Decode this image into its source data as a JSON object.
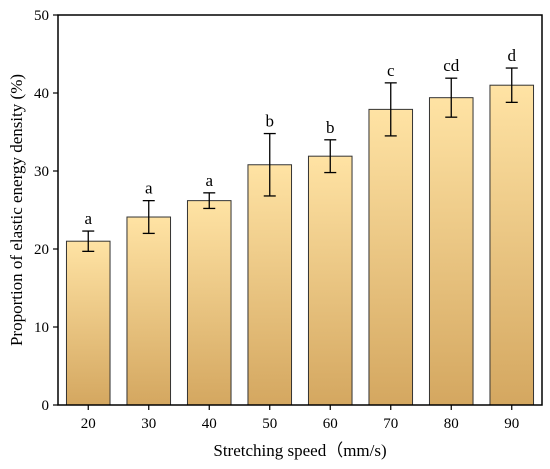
{
  "chart_data": {
    "type": "bar",
    "xlabel": "Stretching speed（mm/s)",
    "ylabel": "Proportion of elastic energy density (%)",
    "ylim": [
      0,
      50
    ],
    "yticks": [
      0,
      10,
      20,
      30,
      40,
      50
    ],
    "categories": [
      "20",
      "30",
      "40",
      "50",
      "60",
      "70",
      "80",
      "90"
    ],
    "values": [
      21.0,
      24.1,
      26.2,
      30.8,
      31.9,
      37.9,
      39.4,
      41.0
    ],
    "errors": [
      1.3,
      2.1,
      1.0,
      4.0,
      2.1,
      3.4,
      2.5,
      2.2
    ],
    "significance_letters": [
      "a",
      "a",
      "a",
      "b",
      "b",
      "c",
      "cd",
      "d"
    ],
    "colors": {
      "bar_top": "#FFE3A4",
      "bar_bottom": "#D4A760",
      "bar_edge": "#333333"
    }
  }
}
